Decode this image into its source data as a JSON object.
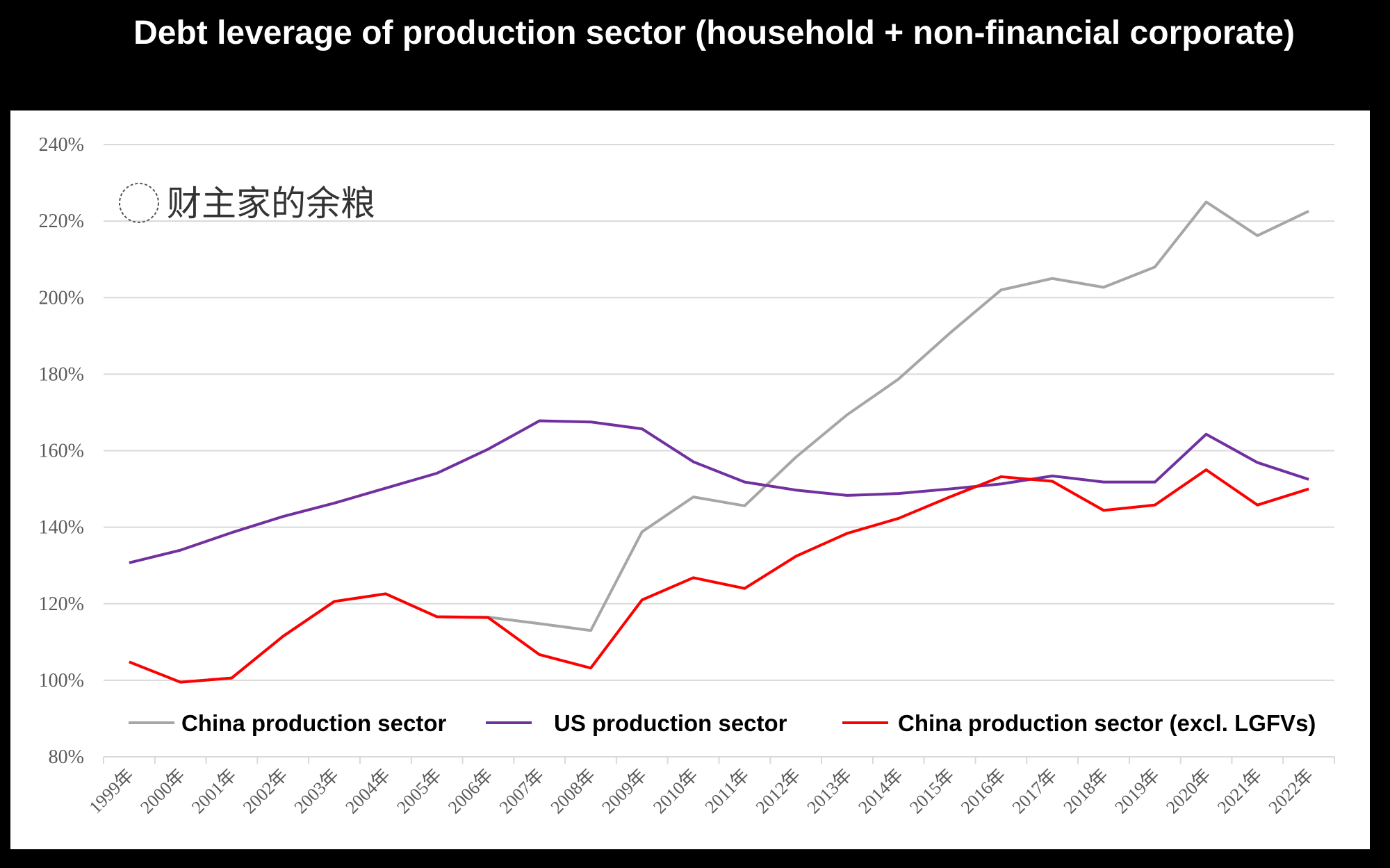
{
  "chart_data": {
    "type": "line",
    "title": "Debt leverage of production sector (household + non-financial corporate)",
    "xlabel": "",
    "ylabel": "",
    "categories": [
      "1999年",
      "2000年",
      "2001年",
      "2002年",
      "2003年",
      "2004年",
      "2005年",
      "2006年",
      "2007年",
      "2008年",
      "2009年",
      "2010年",
      "2011年",
      "2012年",
      "2013年",
      "2014年",
      "2015年",
      "2016年",
      "2017年",
      "2018年",
      "2019年",
      "2020年",
      "2021年",
      "2022年"
    ],
    "ylim": [
      80,
      240
    ],
    "yticks": [
      "80%",
      "100%",
      "120%",
      "140%",
      "160%",
      "180%",
      "200%",
      "220%",
      "240%"
    ],
    "ytick_values": [
      80,
      100,
      120,
      140,
      160,
      180,
      200,
      220,
      240
    ],
    "grid": true,
    "legend_position": "bottom-inside",
    "series": [
      {
        "name": "China production sector",
        "color": "#a6a6a6",
        "values": [
          104.8,
          99.5,
          100.6,
          111.5,
          120.6,
          122.6,
          116.6,
          116.5,
          114.8,
          113.0,
          138.8,
          147.9,
          145.6,
          158.3,
          169.4,
          178.7,
          190.7,
          202.0,
          205.0,
          202.7,
          208.0,
          225.0,
          216.2,
          222.6
        ]
      },
      {
        "name": "US production sector",
        "color": "#7030a0",
        "values": [
          130.7,
          134.0,
          138.6,
          142.8,
          146.3,
          150.2,
          154.1,
          160.4,
          167.8,
          167.5,
          165.7,
          157.1,
          151.8,
          149.7,
          148.3,
          148.8,
          150.0,
          151.3,
          153.4,
          151.8,
          151.8,
          164.3,
          156.9,
          152.5
        ]
      },
      {
        "name": "China production sector (excl. LGFVs)",
        "color": "#ff0000",
        "values": [
          104.8,
          99.5,
          100.6,
          111.5,
          120.6,
          122.6,
          116.6,
          116.4,
          106.7,
          103.2,
          121.0,
          126.8,
          124.0,
          132.4,
          138.4,
          142.3,
          147.9,
          153.2,
          152.0,
          144.4,
          145.8,
          155.0,
          145.8,
          150.0
        ]
      }
    ]
  },
  "watermark": "财主家的余粮"
}
